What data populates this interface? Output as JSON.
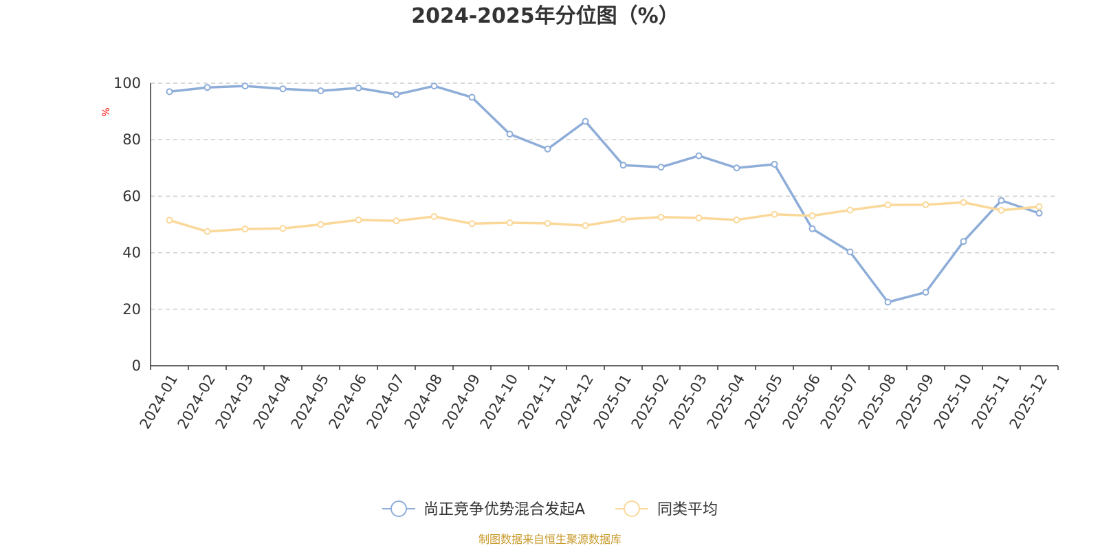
{
  "chart_data": {
    "type": "line",
    "title": "2024-2025年分位图（%）",
    "y_unit": "%",
    "ylim": [
      0,
      100
    ],
    "y_ticks": [
      0,
      20,
      40,
      60,
      80,
      100
    ],
    "grid": "horizontal dashed",
    "legend_position": "bottom-center",
    "categories": [
      "2024-01",
      "2024-02",
      "2024-03",
      "2024-04",
      "2024-05",
      "2024-06",
      "2024-07",
      "2024-08",
      "2024-09",
      "2024-10",
      "2024-11",
      "2024-12",
      "2025-01",
      "2025-02",
      "2025-03",
      "2025-04",
      "2025-05",
      "2025-06",
      "2025-07",
      "2025-08",
      "2025-09",
      "2025-10",
      "2025-11",
      "2025-12"
    ],
    "series": [
      {
        "name": "尚正竞争优势混合发起A",
        "color": "#8EADD8",
        "values": [
          97,
          98.5,
          99,
          98,
          97.3,
          98.3,
          96,
          99,
          95,
          82,
          76.7,
          86.5,
          71,
          70.3,
          74.3,
          70,
          71.3,
          48.5,
          40.3,
          22.5,
          26,
          44,
          58.5,
          54
        ]
      },
      {
        "name": "同类平均",
        "color": "#FAD899",
        "values": [
          51.5,
          47.5,
          48.4,
          48.6,
          50,
          51.6,
          51.3,
          52.8,
          50.3,
          50.6,
          50.4,
          49.6,
          51.8,
          52.6,
          52.3,
          51.6,
          53.6,
          53.1,
          55.1,
          56.9,
          57,
          57.8,
          55,
          56.3
        ]
      }
    ]
  },
  "colors": {
    "text": "#333333",
    "unit": "#FF0000",
    "source": "#C89A2B",
    "grid": "#CCCCCC",
    "axis": "#333333"
  },
  "footer": {
    "source_text": "制图数据来自恒生聚源数据库"
  }
}
